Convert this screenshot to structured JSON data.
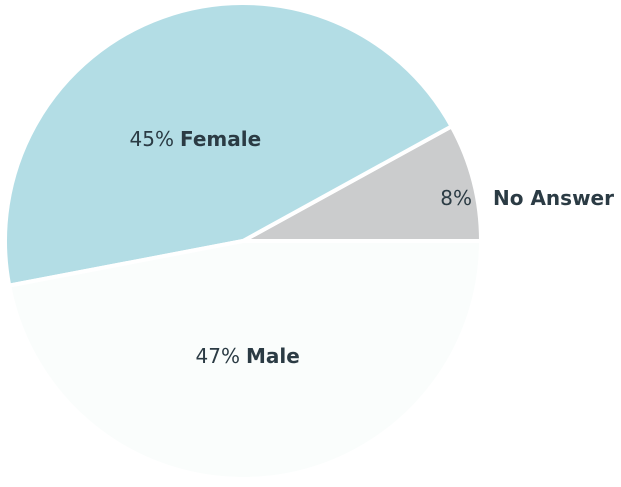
{
  "chart_data": {
    "type": "pie",
    "slices": [
      {
        "label": "No Answer",
        "value": 8,
        "value_label": "8%",
        "color": "#cbcccd"
      },
      {
        "label": "Female",
        "value": 45,
        "value_label": "45%",
        "color": "#b3dde5"
      },
      {
        "label": "Male",
        "value": 47,
        "value_label": "47%",
        "color": "#fafdfc"
      }
    ],
    "start": "3 o'clock",
    "direction": "counterclockwise",
    "background": "#ffffff",
    "text_color": "#2b3b44"
  }
}
